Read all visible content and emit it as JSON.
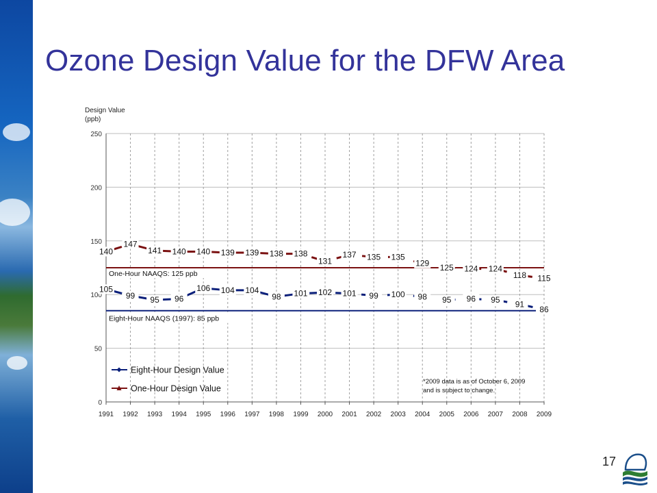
{
  "slide": {
    "title": "Ozone Design Value for the DFW Area",
    "page_number": "17"
  },
  "colors": {
    "title": "#33339a",
    "eight_hour": "#0a1f7a",
    "one_hour": "#7a1010",
    "grid": "#bdbdbd"
  },
  "chart_data": {
    "type": "line",
    "title": "",
    "ylabel_lines": [
      "Design Value",
      "(ppb)"
    ],
    "xlabel": "",
    "ylim": [
      0,
      250
    ],
    "yticks": [
      0,
      50,
      100,
      150,
      200,
      250
    ],
    "grid": true,
    "legend_position": "bottom-left",
    "x_tick_labels": [
      "1991",
      "1992",
      "1993",
      "1994",
      "1995",
      "1996",
      "1997",
      "1998",
      "1999",
      "2000",
      "2001",
      "2002",
      "2003",
      "2004",
      "2005",
      "2006",
      "2007",
      "2008",
      "2009"
    ],
    "series": [
      {
        "name": "Eight-Hour Design Value",
        "color": "#0a1f7a",
        "marker": "diamond",
        "values": [
          105,
          99,
          95,
          96,
          106,
          104,
          104,
          98,
          101,
          102,
          101,
          99,
          100,
          98,
          95,
          96,
          95,
          91,
          86
        ]
      },
      {
        "name": "One-Hour Design Value",
        "color": "#7a1010",
        "marker": "triangle",
        "values": [
          140,
          147,
          141,
          140,
          140,
          139,
          139,
          138,
          138,
          131,
          137,
          135,
          135,
          129,
          125,
          124,
          124,
          118,
          115
        ]
      }
    ],
    "reference_lines": [
      {
        "label": "One-Hour NAAQS: 125 ppb",
        "value": 125,
        "color": "#7a1010"
      },
      {
        "label": "Eight-Hour NAAQS (1997): 85 ppb",
        "value": 85,
        "color": "#0a1f7a"
      }
    ],
    "annotation_lines": [
      "*2009 data is as of October 6, 2009",
      "and is subject to change."
    ]
  }
}
